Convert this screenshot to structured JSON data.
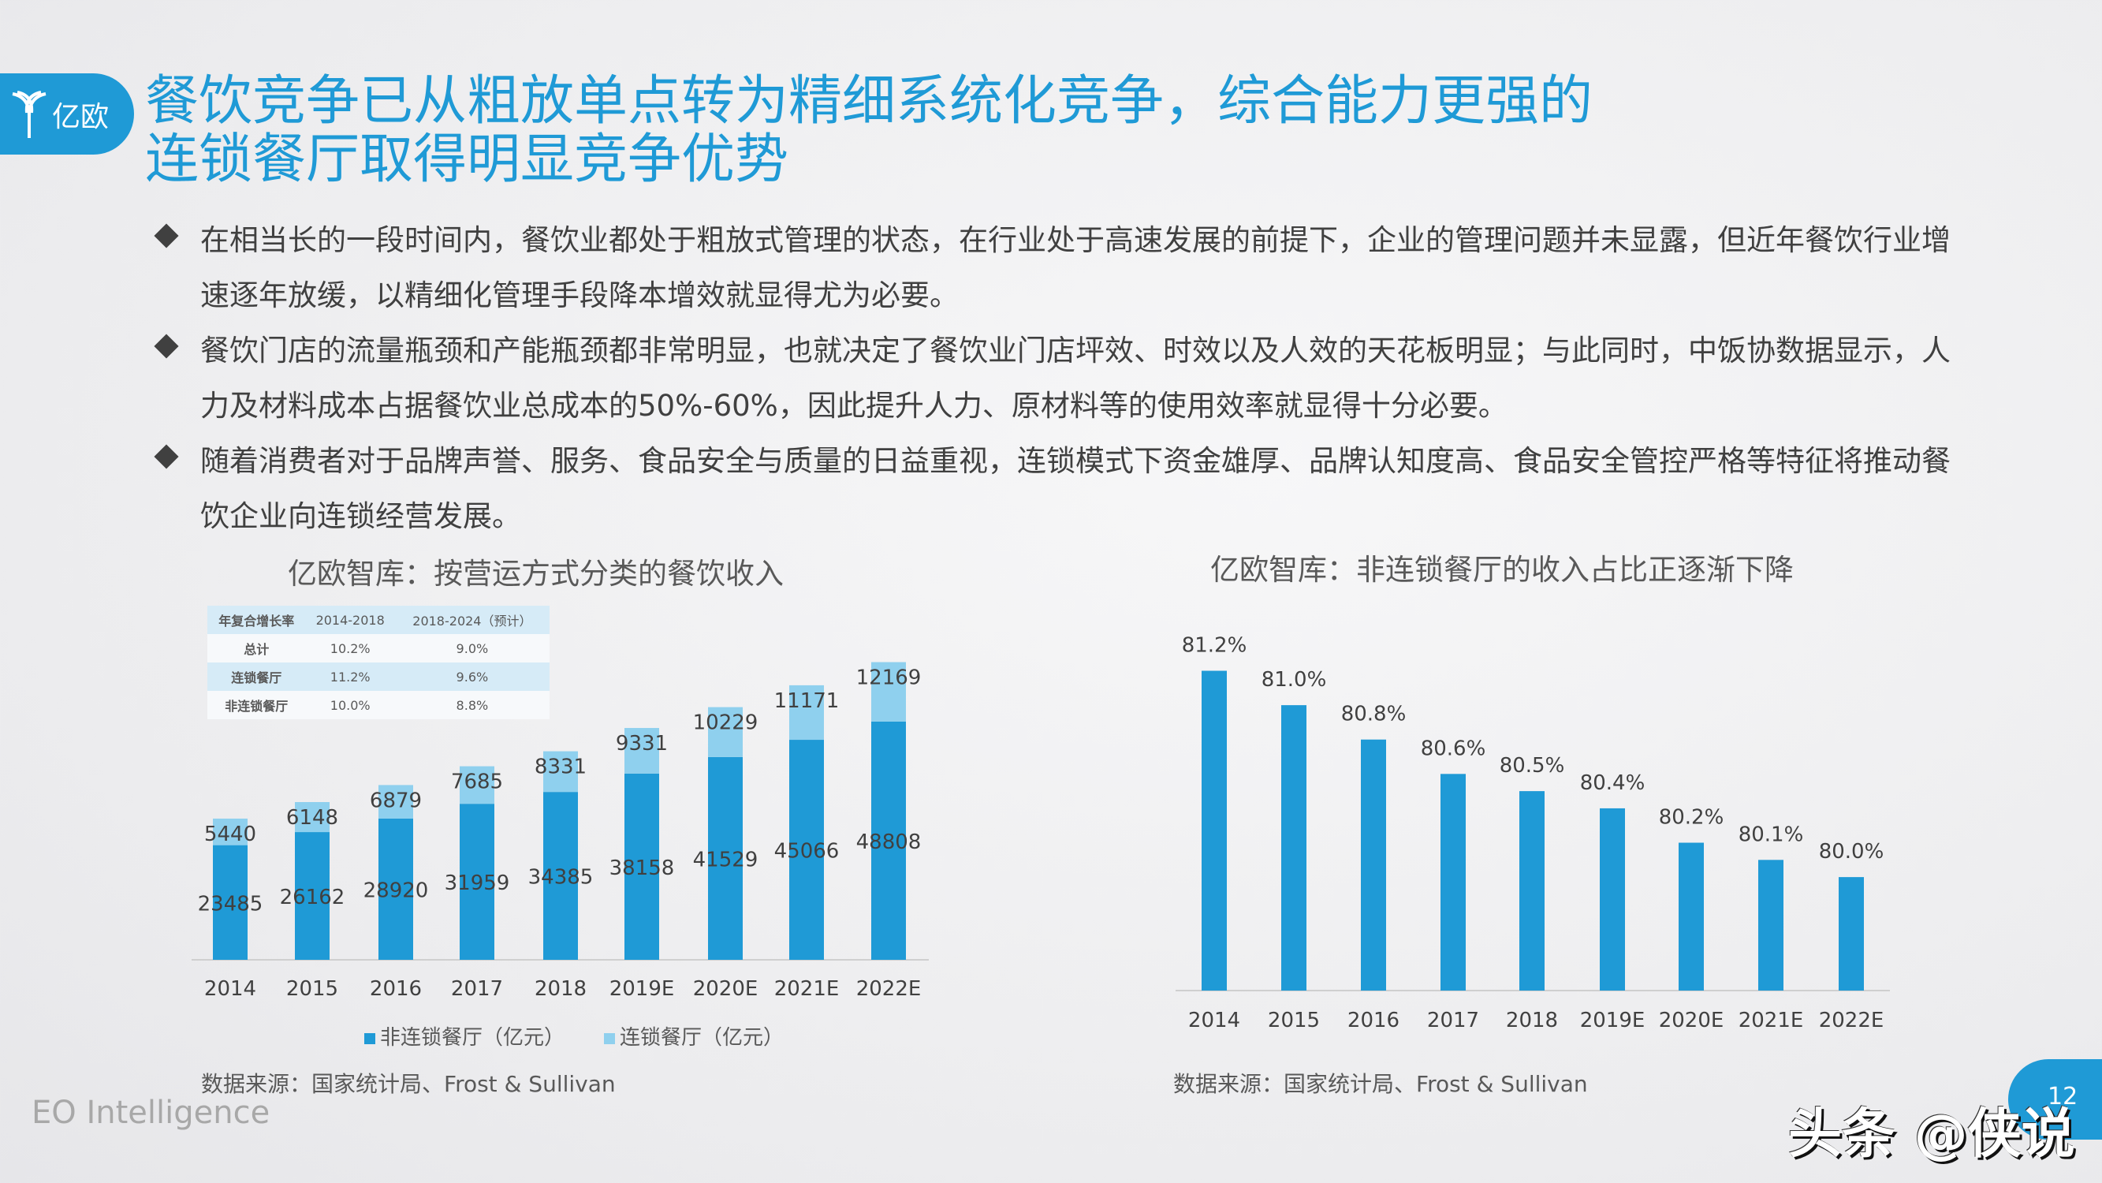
{
  "logo": {
    "text": "亿欧"
  },
  "title": {
    "line1": "餐饮竞争已从粗放单点转为精细系统化竞争，综合能力更强的",
    "line2": "连锁餐厅取得明显竞争优势"
  },
  "bullets": [
    "在相当长的一段时间内，餐饮业都处于粗放式管理的状态，在行业处于高速发展的前提下，企业的管理问题并未显露，但近年餐饮行业增速逐年放缓，以精细化管理手段降本增效就显得尤为必要。",
    "餐饮门店的流量瓶颈和产能瓶颈都非常明显，也就决定了餐饮业门店坪效、时效以及人效的天花板明显；与此同时，中饭协数据显示，人力及材料成本占据餐饮业总成本的50%-60%，因此提升人力、原材料等的使用效率就显得十分必要。",
    "随着消费者对于品牌声誉、服务、食品安全与质量的日益重视，连锁模式下资金雄厚、品牌认知度高、食品安全管控严格等特征将推动餐饮企业向连锁经营发展。"
  ],
  "growth_table": {
    "headers": [
      "年复合增长率",
      "2014-2018",
      "2018-2024（预计）"
    ],
    "rows": [
      [
        "总计",
        "10.2%",
        "9.0%"
      ],
      [
        "连锁餐厅",
        "11.2%",
        "9.6%"
      ],
      [
        "非连锁餐厅",
        "10.0%",
        "8.8%"
      ]
    ]
  },
  "colors": {
    "dark": "#1f9ad6",
    "light": "#8fd0ee"
  },
  "chart_data": [
    {
      "type": "bar",
      "stacked": true,
      "title": "亿欧智库：按营运方式分类的餐饮收入",
      "categories": [
        "2014",
        "2015",
        "2016",
        "2017",
        "2018",
        "2019E",
        "2020E",
        "2021E",
        "2022E"
      ],
      "series": [
        {
          "name": "非连锁餐厅（亿元）",
          "values": [
            23485,
            26162,
            28920,
            31959,
            34385,
            38158,
            41529,
            45066,
            48808
          ]
        },
        {
          "name": "连锁餐厅（亿元）",
          "values": [
            5440,
            6148,
            6879,
            7685,
            8331,
            9331,
            10229,
            11171,
            12169
          ]
        }
      ],
      "legend": "bottom",
      "grid": false,
      "source": "数据来源：国家统计局、Frost & Sullivan"
    },
    {
      "type": "bar",
      "title": "亿欧智库：非连锁餐厅的收入占比正逐渐下降",
      "categories": [
        "2014",
        "2015",
        "2016",
        "2017",
        "2018",
        "2019E",
        "2020E",
        "2021E",
        "2022E"
      ],
      "values": [
        81.2,
        81.0,
        80.8,
        80.6,
        80.5,
        80.4,
        80.2,
        80.1,
        80.0
      ],
      "labels": [
        "81.2%",
        "81.0%",
        "80.8%",
        "80.6%",
        "80.5%",
        "80.4%",
        "80.2%",
        "80.1%",
        "80.0%"
      ],
      "grid": false,
      "source": "数据来源：国家统计局、Frost & Sullivan"
    }
  ],
  "footer": {
    "brand": "EO Intelligence",
    "page": "12",
    "watermark": "头条 @侠说"
  }
}
